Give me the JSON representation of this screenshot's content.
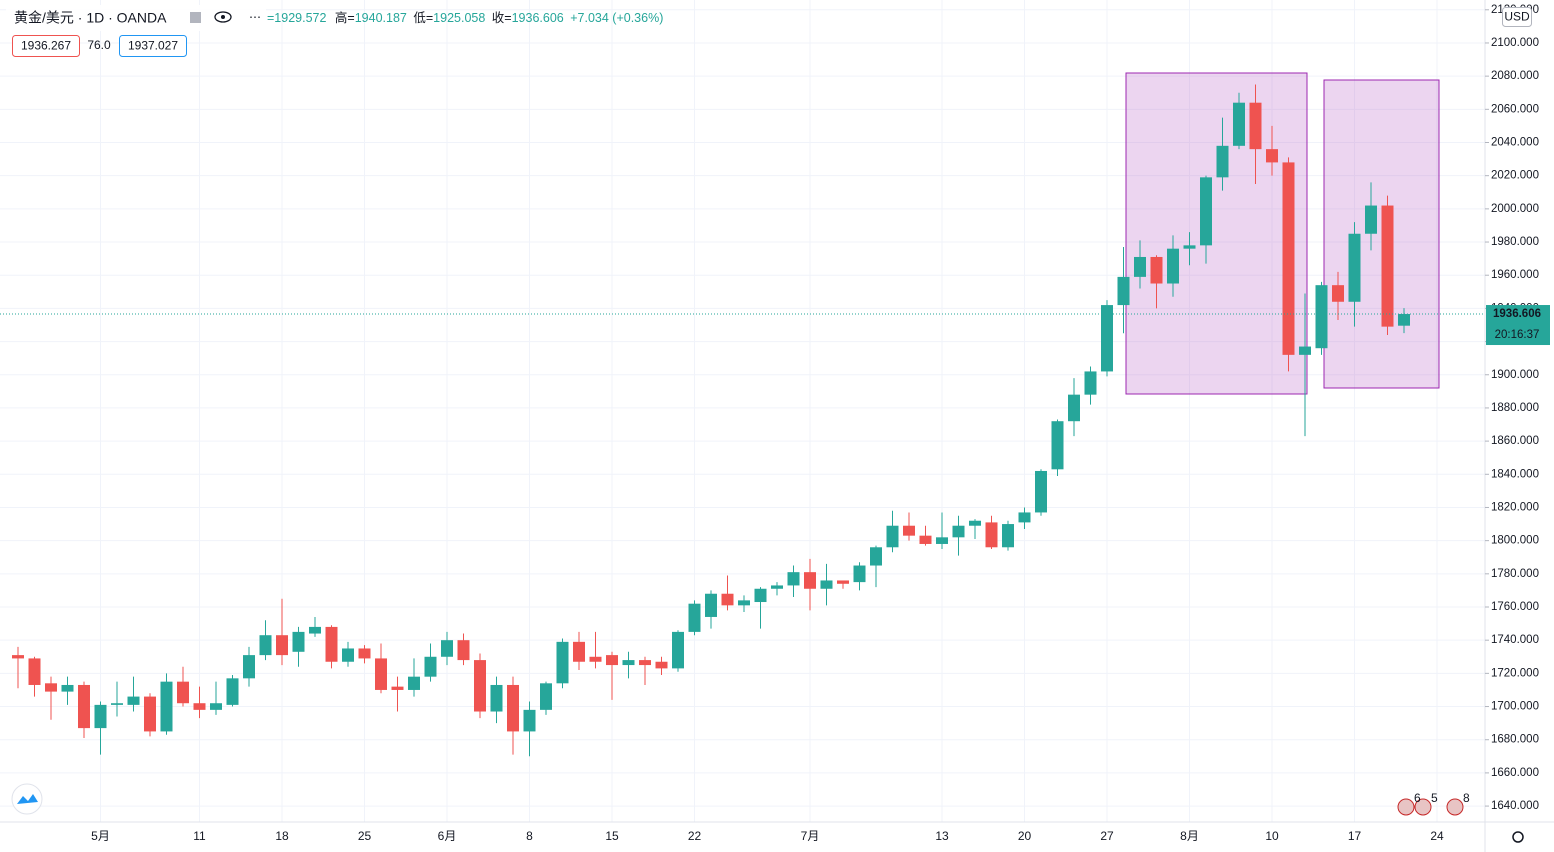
{
  "chart_data": {
    "type": "candlestick",
    "header": {
      "symbol": "黄金/美元 · 1D · OANDA",
      "open": "=1929.572",
      "high_label": "高=",
      "high": "1940.187",
      "low_label": "低=",
      "low": "1925.058",
      "close_label": "收=",
      "close": "1936.606",
      "change": "+7.034 (+0.36%)",
      "bid": "1936.267",
      "spread": "76.0",
      "ask": "1937.027"
    },
    "currency": "USD",
    "countdown": "20:16:37",
    "events": [
      "6",
      "5",
      "8"
    ],
    "up_color": "#26a69a",
    "down_color": "#ef5350",
    "categories": [
      null,
      null,
      null,
      null,
      null,
      "5月",
      null,
      null,
      null,
      null,
      null,
      "11",
      null,
      null,
      null,
      null,
      "18",
      null,
      null,
      null,
      null,
      "25",
      null,
      null,
      null,
      null,
      "6月",
      null,
      null,
      null,
      null,
      "8",
      null,
      null,
      null,
      null,
      "15",
      null,
      null,
      null,
      null,
      "22",
      null,
      null,
      null,
      null,
      null,
      null,
      "7月",
      null,
      null,
      null,
      null,
      null,
      null,
      null,
      "13",
      null,
      null,
      null,
      null,
      "20",
      null,
      null,
      null,
      null,
      "27",
      null,
      null,
      null,
      null,
      "8月",
      null,
      null,
      null,
      null,
      "10",
      null,
      null,
      null,
      null,
      "17",
      null,
      null,
      null,
      null,
      "24"
    ],
    "open": [
      1731,
      1729,
      1714,
      1709,
      1713,
      1687,
      1701,
      1701,
      1706,
      1685,
      1715,
      1702,
      1698,
      1701,
      1717,
      1731,
      1743,
      1733,
      1744,
      1748,
      1727,
      1735,
      1729,
      1712,
      1710,
      1718,
      1730,
      1740,
      1728,
      1697,
      1713,
      1685,
      1698,
      1714,
      1739,
      1730,
      1731,
      1725,
      1728,
      1727,
      1723,
      1745,
      1754,
      1768,
      1761,
      1763,
      1771,
      1773,
      1781,
      1771,
      1776,
      1775,
      1785,
      1796,
      1809,
      1803,
      1798,
      1802,
      1809,
      1811,
      1796,
      1811,
      1817,
      1843,
      1872,
      1888,
      1902,
      1942,
      1959,
      1971,
      1955,
      1976,
      1978,
      2019,
      2038,
      2064,
      2036,
      2028,
      1912,
      1916,
      1954,
      1944,
      1985,
      2002,
      1929.572,
      null,
      null
    ],
    "high": [
      1736,
      1730,
      1718,
      1718,
      1715,
      1703,
      1715,
      1718,
      1708,
      1720,
      1724,
      1712,
      1715,
      1719,
      1736,
      1752,
      1765,
      1748,
      1754,
      1749,
      1739,
      1737,
      1738,
      1718,
      1729,
      1738,
      1745,
      1744,
      1732,
      1718,
      1718,
      1703,
      1715,
      1741,
      1745,
      1745,
      1733,
      1733,
      1730,
      1730,
      1746,
      1764,
      1770,
      1779,
      1767,
      1772,
      1775,
      1785,
      1789,
      1786,
      1776,
      1787,
      1797,
      1818,
      1817,
      1809,
      1817,
      1815,
      1813,
      1815,
      1812,
      1820,
      1843,
      1873,
      1898,
      1905,
      1945,
      1977,
      1981,
      1972,
      1984,
      1986,
      2020,
      2055,
      2070,
      2075,
      2050,
      2031,
      1949,
      1956,
      1962,
      1992,
      2016,
      2008,
      1940.187,
      null,
      null
    ],
    "low": [
      1711,
      1706,
      1692,
      1701,
      1681,
      1671,
      1694,
      1697,
      1682,
      1683,
      1700,
      1693,
      1695,
      1700,
      1712,
      1728,
      1725,
      1724,
      1742,
      1723,
      1724,
      1726,
      1708,
      1697,
      1706,
      1715,
      1725,
      1725,
      1693,
      1690,
      1671,
      1670,
      1695,
      1711,
      1722,
      1723,
      1704,
      1717,
      1713,
      1719,
      1721,
      1743,
      1747,
      1758,
      1757,
      1747,
      1767,
      1766,
      1758,
      1761,
      1771,
      1770,
      1772,
      1793,
      1800,
      1797,
      1795,
      1791,
      1801,
      1795,
      1794,
      1807,
      1815,
      1839,
      1863,
      1882,
      1899,
      1925,
      1952,
      1940,
      1947,
      1966,
      1967,
      2011,
      2036,
      2015,
      2020,
      1902,
      1863,
      1912,
      1933,
      1929,
      1975,
      1924,
      1925.058,
      null,
      null
    ],
    "close": [
      1729,
      1713,
      1709,
      1713,
      1687,
      1701,
      1702,
      1706,
      1685,
      1715,
      1702,
      1698,
      1702,
      1717,
      1731,
      1743,
      1731,
      1745,
      1748,
      1727,
      1735,
      1729,
      1710,
      1710,
      1718,
      1730,
      1740,
      1728,
      1697,
      1713,
      1685,
      1698,
      1714,
      1739,
      1727,
      1727,
      1725,
      1728,
      1725,
      1723,
      1745,
      1762,
      1768,
      1761,
      1764,
      1771,
      1773,
      1781,
      1771,
      1776,
      1774,
      1785,
      1796,
      1809,
      1803,
      1798,
      1802,
      1809,
      1812,
      1796,
      1810,
      1817,
      1842,
      1872,
      1888,
      1902,
      1942,
      1959,
      1971,
      1955,
      1976,
      1978,
      2019,
      2038,
      2064,
      2036,
      2028,
      1912,
      1917,
      1954,
      1944,
      1985,
      2002,
      1929,
      1936.606,
      null,
      null
    ],
    "ylim": [
      1630.4,
      2125.9
    ],
    "yticks": [
      {
        "value": 1640,
        "label": "1640.000"
      },
      {
        "value": 1660,
        "label": "1660.000"
      },
      {
        "value": 1680,
        "label": "1680.000"
      },
      {
        "value": 1700,
        "label": "1700.000"
      },
      {
        "value": 1720,
        "label": "1720.000"
      },
      {
        "value": 1740,
        "label": "1740.000"
      },
      {
        "value": 1760,
        "label": "1760.000"
      },
      {
        "value": 1780,
        "label": "1780.000"
      },
      {
        "value": 1800,
        "label": "1800.000"
      },
      {
        "value": 1820,
        "label": "1820.000"
      },
      {
        "value": 1840,
        "label": "1840.000"
      },
      {
        "value": 1860,
        "label": "1860.000"
      },
      {
        "value": 1880,
        "label": "1880.000"
      },
      {
        "value": 1900,
        "label": "1900.000"
      },
      {
        "value": 1920,
        "label": "1920.000"
      },
      {
        "value": 1940,
        "label": "1940.000"
      },
      {
        "value": 1960,
        "label": "1960.000"
      },
      {
        "value": 1980,
        "label": "1980.000"
      },
      {
        "value": 2000,
        "label": "2000.000"
      },
      {
        "value": 2020,
        "label": "2020.000"
      },
      {
        "value": 2040,
        "label": "2040.000"
      },
      {
        "value": 2060,
        "label": "2060.000"
      },
      {
        "value": 2080,
        "label": "2080.000"
      },
      {
        "value": 2100,
        "label": "2100.000"
      },
      {
        "value": 2120,
        "label": "2120.000"
      }
    ],
    "grid": true
  }
}
